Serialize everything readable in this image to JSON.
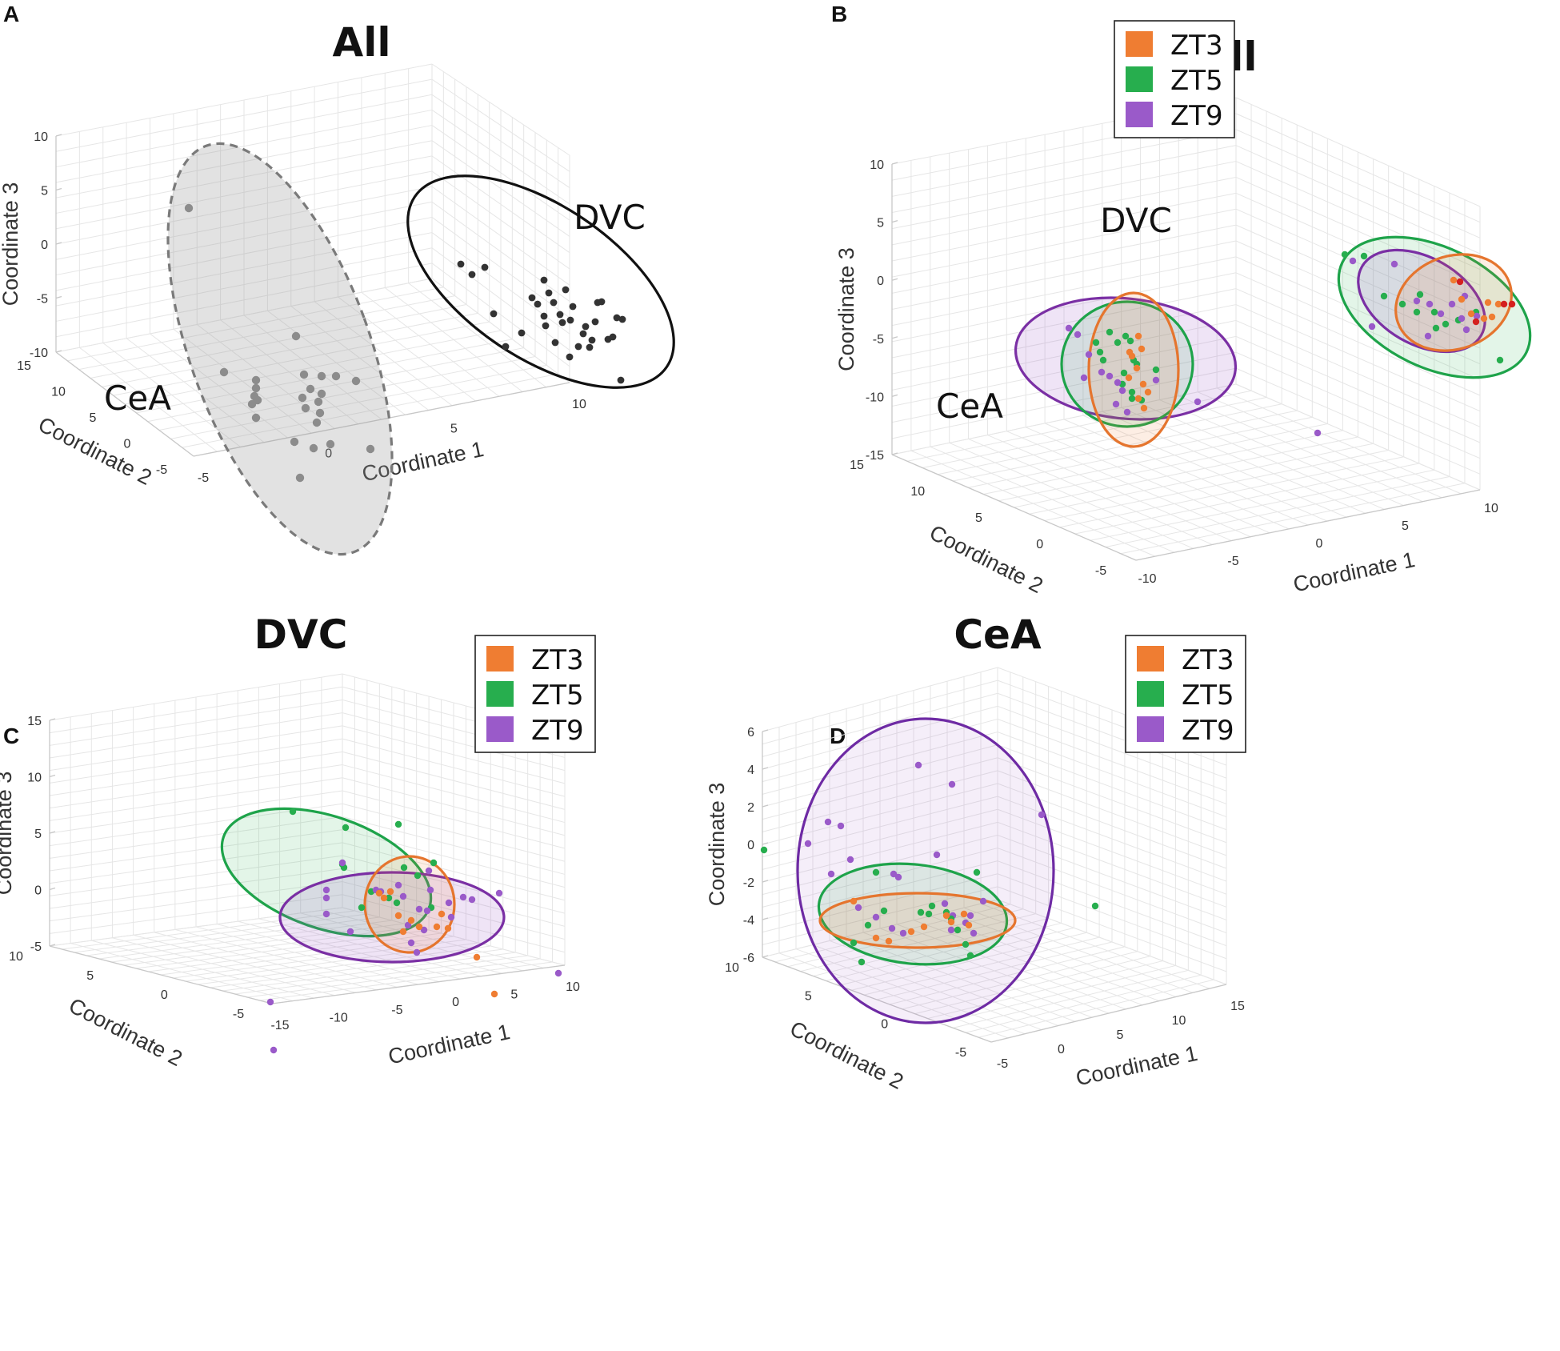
{
  "chart_data": [
    {
      "id": "A",
      "type": "scatter",
      "panel_label": "A",
      "title": "All",
      "xlabel": "Coordinate 1",
      "ylabel": "Coordinate 2",
      "zlabel": "Coordinate 3",
      "z_ticks": [
        "10",
        "5",
        "0",
        "-5",
        "-10"
      ],
      "y_ticks": [
        "15",
        "10",
        "5",
        "0",
        "-5"
      ],
      "x_ticks": [
        "-5",
        "0",
        "5",
        "10"
      ],
      "groups": [
        {
          "name": "CeA",
          "color": "#8c8c8c"
        },
        {
          "name": "DVC",
          "color": "#333333"
        }
      ],
      "colors": {
        "CeA": "#8c8c8c",
        "DVC": "#333333"
      }
    },
    {
      "id": "B",
      "type": "scatter",
      "panel_label": "B",
      "title": "All",
      "xlabel": "Coordinate 1",
      "ylabel": "Coordinate 2",
      "zlabel": "Coordinate 3",
      "z_ticks": [
        "10",
        "5",
        "0",
        "-5",
        "-10",
        "-15"
      ],
      "y_ticks": [
        "15",
        "10",
        "5",
        "0",
        "-5"
      ],
      "x_ticks": [
        "-10",
        "-5",
        "0",
        "5",
        "10"
      ],
      "groups": [
        {
          "name": "CeA"
        },
        {
          "name": "DVC"
        }
      ],
      "legend": [
        "ZT3",
        "ZT5",
        "ZT9"
      ],
      "colors": {
        "ZT3": "#ef7d32",
        "ZT5": "#27ae4e",
        "ZT9": "#9a5ac9"
      }
    },
    {
      "id": "C",
      "type": "scatter",
      "panel_label": "C",
      "title": "DVC",
      "xlabel": "Coordinate 1",
      "ylabel": "Coordinate 2",
      "zlabel": "Coordinate 3",
      "z_ticks": [
        "15",
        "10",
        "5",
        "0",
        "-5"
      ],
      "y_ticks": [
        "10",
        "5",
        "0",
        "-5"
      ],
      "x_ticks": [
        "-15",
        "-10",
        "-5",
        "0",
        "5",
        "10"
      ],
      "legend": [
        "ZT3",
        "ZT5",
        "ZT9"
      ],
      "colors": {
        "ZT3": "#ef7d32",
        "ZT5": "#27ae4e",
        "ZT9": "#9a5ac9"
      }
    },
    {
      "id": "D",
      "type": "scatter",
      "panel_label": "D",
      "title": "CeA",
      "xlabel": "Coordinate 1",
      "ylabel": "Coordinate 2",
      "zlabel": "Coordinate 3",
      "z_ticks": [
        "6",
        "4",
        "2",
        "0",
        "-2",
        "-4",
        "-6"
      ],
      "y_ticks": [
        "10",
        "5",
        "0",
        "-5"
      ],
      "x_ticks": [
        "-5",
        "0",
        "5",
        "10",
        "15"
      ],
      "legend": [
        "ZT3",
        "ZT5",
        "ZT9"
      ],
      "colors": {
        "ZT3": "#ef7d32",
        "ZT5": "#27ae4e",
        "ZT9": "#9a5ac9"
      }
    }
  ]
}
